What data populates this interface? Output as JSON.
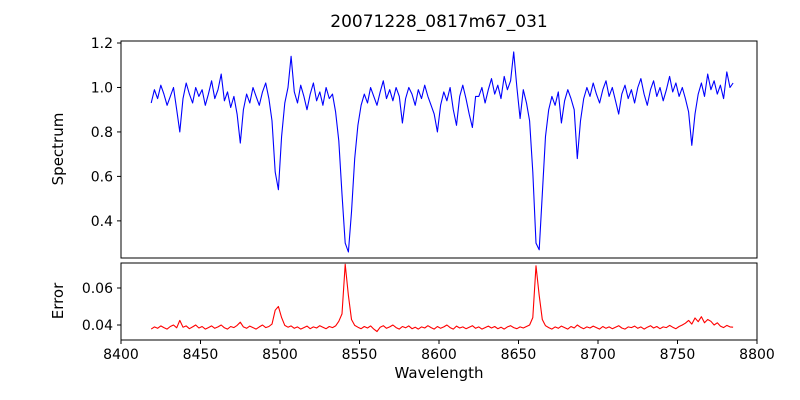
{
  "figure": {
    "title": "20071228_0817m67_031",
    "xlabel": "Wavelength",
    "background_color": "#ffffff",
    "spine_color": "#000000"
  },
  "chart_data": [
    {
      "type": "line",
      "series_name": "spectrum",
      "title": "20071228_0817m67_031",
      "ylabel": "Spectrum",
      "color": "#0000ff",
      "legend": "none",
      "grid": false,
      "xlim": [
        8400,
        8800
      ],
      "ylim": [
        0.233,
        1.209
      ],
      "yticks": [
        {
          "value": 0.4,
          "label": "0.4"
        },
        {
          "value": 0.6,
          "label": "0.6"
        },
        {
          "value": 0.8,
          "label": "0.8"
        },
        {
          "value": 1.0,
          "label": "1.0"
        },
        {
          "value": 1.2,
          "label": "1.2"
        }
      ],
      "xticks": [],
      "x_start": 8419,
      "x_step": 2,
      "values": [
        0.93,
        0.99,
        0.95,
        1.01,
        0.97,
        0.92,
        0.96,
        1.0,
        0.9,
        0.8,
        0.95,
        1.02,
        0.97,
        0.93,
        1.0,
        0.96,
        0.99,
        0.92,
        0.97,
        1.03,
        0.95,
        0.99,
        1.06,
        0.94,
        0.98,
        0.91,
        0.96,
        0.88,
        0.75,
        0.9,
        0.97,
        0.93,
        1.0,
        0.96,
        0.92,
        0.98,
        1.02,
        0.95,
        0.85,
        0.62,
        0.54,
        0.78,
        0.93,
        1.0,
        1.14,
        0.98,
        0.93,
        1.01,
        0.96,
        0.9,
        0.97,
        1.02,
        0.94,
        0.98,
        0.92,
        1.0,
        0.95,
        0.97,
        0.89,
        0.76,
        0.52,
        0.3,
        0.26,
        0.44,
        0.68,
        0.83,
        0.92,
        0.97,
        0.93,
        1.0,
        0.96,
        0.92,
        0.98,
        1.03,
        0.95,
        0.99,
        0.94,
        1.0,
        0.96,
        0.84,
        0.95,
        1.0,
        0.97,
        0.92,
        0.99,
        0.95,
        1.01,
        0.96,
        0.92,
        0.88,
        0.8,
        0.92,
        0.98,
        0.94,
        1.0,
        0.9,
        0.83,
        0.96,
        1.01,
        0.95,
        0.88,
        0.82,
        0.96,
        0.96,
        1.0,
        0.93,
        0.99,
        1.04,
        0.97,
        1.01,
        0.95,
        1.05,
        0.99,
        1.03,
        1.16,
        1.0,
        0.86,
        0.99,
        0.93,
        0.85,
        0.62,
        0.3,
        0.27,
        0.52,
        0.78,
        0.9,
        0.96,
        0.92,
        0.98,
        0.84,
        0.94,
        0.99,
        0.95,
        0.9,
        0.68,
        0.85,
        0.95,
        1.0,
        0.96,
        1.02,
        0.97,
        0.93,
        0.99,
        1.03,
        0.96,
        1.0,
        0.94,
        0.88,
        0.97,
        1.01,
        0.95,
        0.99,
        0.93,
        1.0,
        1.04,
        0.97,
        0.92,
        0.99,
        1.03,
        0.96,
        1.0,
        0.94,
        0.99,
        1.05,
        0.98,
        1.02,
        0.96,
        1.0,
        0.95,
        0.89,
        0.74,
        0.88,
        0.97,
        1.02,
        0.96,
        1.06,
        0.99,
        1.03,
        0.97,
        1.01,
        0.95,
        1.07,
        1.0,
        1.02
      ]
    },
    {
      "type": "line",
      "series_name": "error",
      "ylabel": "Error",
      "xlabel": "Wavelength",
      "color": "#ff0000",
      "legend": "none",
      "grid": false,
      "xlim": [
        8400,
        8800
      ],
      "ylim": [
        0.0319,
        0.0735
      ],
      "yticks": [
        {
          "value": 0.04,
          "label": "0.04"
        },
        {
          "value": 0.06,
          "label": "0.06"
        }
      ],
      "xticks": [
        {
          "value": 8400,
          "label": "8400"
        },
        {
          "value": 8450,
          "label": "8450"
        },
        {
          "value": 8500,
          "label": "8500"
        },
        {
          "value": 8550,
          "label": "8550"
        },
        {
          "value": 8600,
          "label": "8600"
        },
        {
          "value": 8650,
          "label": "8650"
        },
        {
          "value": 8700,
          "label": "8700"
        },
        {
          "value": 8750,
          "label": "8750"
        },
        {
          "value": 8800,
          "label": "8800"
        }
      ],
      "x_start": 8419,
      "x_step": 2,
      "values": [
        0.0378,
        0.039,
        0.0382,
        0.0395,
        0.0386,
        0.0378,
        0.0392,
        0.04,
        0.0385,
        0.0425,
        0.0388,
        0.0395,
        0.038,
        0.039,
        0.04,
        0.0384,
        0.0392,
        0.0378,
        0.0386,
        0.0395,
        0.0382,
        0.039,
        0.04,
        0.0385,
        0.0378,
        0.0392,
        0.0386,
        0.0398,
        0.0415,
        0.039,
        0.0382,
        0.0394,
        0.0386,
        0.0378,
        0.039,
        0.04,
        0.0386,
        0.0392,
        0.0405,
        0.048,
        0.05,
        0.044,
        0.0398,
        0.0388,
        0.0395,
        0.0382,
        0.039,
        0.0378,
        0.0386,
        0.0394,
        0.038,
        0.039,
        0.0384,
        0.0396,
        0.0388,
        0.038,
        0.0392,
        0.0386,
        0.0395,
        0.042,
        0.046,
        0.0728,
        0.056,
        0.043,
        0.0398,
        0.0388,
        0.038,
        0.0392,
        0.0384,
        0.0395,
        0.0378,
        0.0365,
        0.0388,
        0.0396,
        0.0382,
        0.039,
        0.04,
        0.0386,
        0.0378,
        0.0392,
        0.0385,
        0.0395,
        0.038,
        0.0388,
        0.0378,
        0.039,
        0.0384,
        0.0396,
        0.0386,
        0.0378,
        0.0392,
        0.0382,
        0.039,
        0.04,
        0.0386,
        0.0378,
        0.0394,
        0.0384,
        0.039,
        0.038,
        0.0388,
        0.0396,
        0.0382,
        0.039,
        0.0378,
        0.0386,
        0.0394,
        0.0384,
        0.0392,
        0.038,
        0.0388,
        0.0378,
        0.039,
        0.0396,
        0.0386,
        0.038,
        0.039,
        0.0384,
        0.0392,
        0.04,
        0.044,
        0.072,
        0.056,
        0.043,
        0.0396,
        0.0386,
        0.0378,
        0.039,
        0.0382,
        0.0394,
        0.0386,
        0.0378,
        0.0392,
        0.0384,
        0.04,
        0.0388,
        0.038,
        0.039,
        0.0384,
        0.0394,
        0.0386,
        0.0378,
        0.0392,
        0.0382,
        0.039,
        0.038,
        0.0388,
        0.0396,
        0.0384,
        0.0378,
        0.039,
        0.0386,
        0.0394,
        0.0382,
        0.039,
        0.0378,
        0.0388,
        0.0396,
        0.0384,
        0.0392,
        0.038,
        0.039,
        0.0386,
        0.0398,
        0.0388,
        0.038,
        0.0392,
        0.04,
        0.041,
        0.0425,
        0.0405,
        0.0438,
        0.0418,
        0.0445,
        0.0412,
        0.043,
        0.042,
        0.04,
        0.0412,
        0.0394,
        0.0386,
        0.0398,
        0.039,
        0.0388
      ]
    }
  ]
}
